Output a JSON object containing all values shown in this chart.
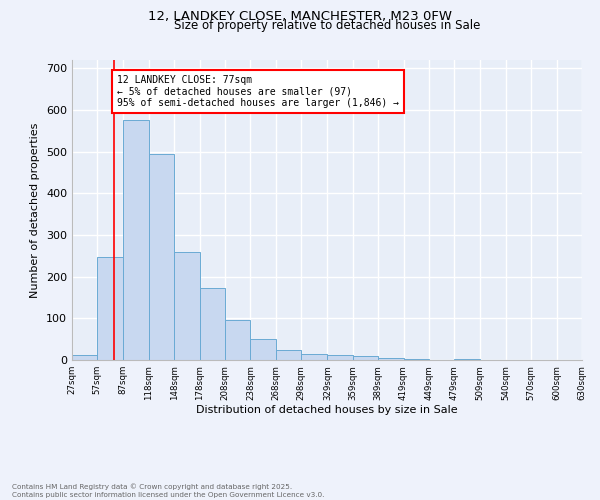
{
  "title1": "12, LANDKEY CLOSE, MANCHESTER, M23 0FW",
  "title2": "Size of property relative to detached houses in Sale",
  "xlabel": "Distribution of detached houses by size in Sale",
  "ylabel": "Number of detached properties",
  "bar_color": "#c8d8f0",
  "bar_edge_color": "#6aaad4",
  "bin_edges": [
    27,
    57,
    87,
    118,
    148,
    178,
    208,
    238,
    268,
    298,
    329,
    359,
    389,
    419,
    449,
    479,
    509,
    540,
    570,
    600,
    630
  ],
  "bar_heights": [
    13,
    247,
    577,
    495,
    260,
    173,
    95,
    50,
    25,
    15,
    13,
    10,
    6,
    3,
    0,
    3,
    0,
    0,
    0,
    0
  ],
  "tick_labels": [
    "27sqm",
    "57sqm",
    "87sqm",
    "118sqm",
    "148sqm",
    "178sqm",
    "208sqm",
    "238sqm",
    "268sqm",
    "298sqm",
    "329sqm",
    "359sqm",
    "389sqm",
    "419sqm",
    "449sqm",
    "479sqm",
    "509sqm",
    "540sqm",
    "570sqm",
    "600sqm",
    "630sqm"
  ],
  "property_line_x": 77,
  "annotation_text": "12 LANDKEY CLOSE: 77sqm\n← 5% of detached houses are smaller (97)\n95% of semi-detached houses are larger (1,846) →",
  "annotation_box_color": "white",
  "annotation_box_edge_color": "red",
  "vline_color": "red",
  "ylim": [
    0,
    720
  ],
  "yticks": [
    0,
    100,
    200,
    300,
    400,
    500,
    600,
    700
  ],
  "bg_color": "#eef2fb",
  "footer_text": "Contains HM Land Registry data © Crown copyright and database right 2025.\nContains public sector information licensed under the Open Government Licence v3.0.",
  "grid_color": "white",
  "axes_bg_color": "#e8eef8"
}
